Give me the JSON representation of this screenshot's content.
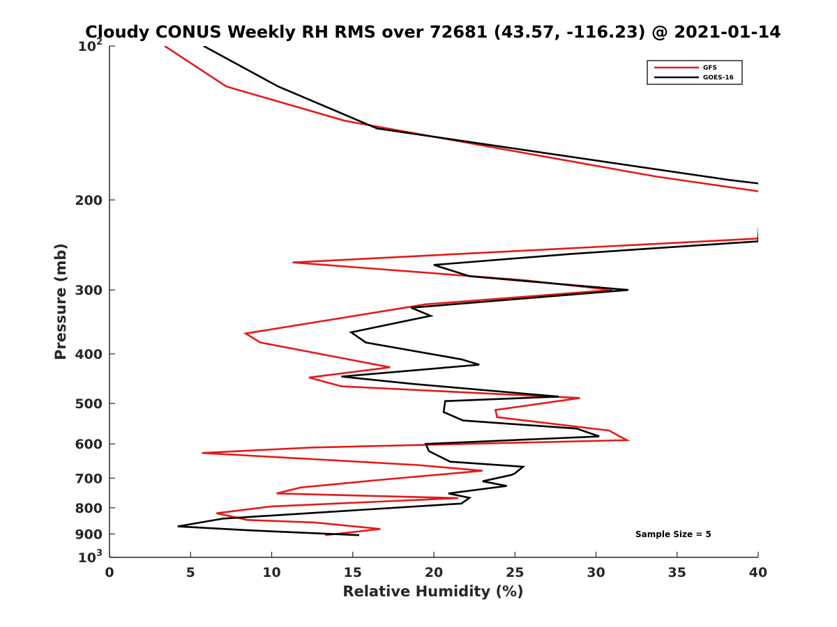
{
  "chart_data": {
    "type": "line",
    "title": "Cloudy CONUS Weekly RH RMS over 72681 (43.57, -116.23) @ 2021-01-14",
    "xlabel": "Relative Humidity (%)",
    "ylabel": "Pressure (mb)",
    "xlim": [
      0,
      40
    ],
    "ylim": [
      100,
      1000
    ],
    "yscale": "log",
    "y_reversed": true,
    "grid": false,
    "legend_position": "top-right",
    "x_ticks": [
      {
        "value": 0,
        "label": "0"
      },
      {
        "value": 5,
        "label": "5"
      },
      {
        "value": 10,
        "label": "10"
      },
      {
        "value": 15,
        "label": "15"
      },
      {
        "value": 20,
        "label": "20"
      },
      {
        "value": 25,
        "label": "25"
      },
      {
        "value": 30,
        "label": "30"
      },
      {
        "value": 35,
        "label": "35"
      },
      {
        "value": 40,
        "label": "40"
      }
    ],
    "y_ticks": [
      {
        "value": 100,
        "base": "10",
        "exp": "2"
      },
      {
        "value": 200,
        "label": "200"
      },
      {
        "value": 300,
        "label": "300"
      },
      {
        "value": 400,
        "label": "400"
      },
      {
        "value": 500,
        "label": "500"
      },
      {
        "value": 600,
        "label": "600"
      },
      {
        "value": 700,
        "label": "700"
      },
      {
        "value": 800,
        "label": "800"
      },
      {
        "value": 900,
        "label": "900"
      },
      {
        "value": 1000,
        "base": "10",
        "exp": "3"
      }
    ],
    "series": [
      {
        "name": "GFS",
        "color": "#e31a1a",
        "points": [
          [
            3.4,
            100
          ],
          [
            7.2,
            120
          ],
          [
            14.5,
            140
          ],
          [
            33.7,
            180
          ],
          [
            40.3,
            193
          ],
          [
            40.0,
            238
          ],
          [
            27.0,
            250
          ],
          [
            11.3,
            265
          ],
          [
            25.5,
            287
          ],
          [
            31.0,
            300
          ],
          [
            19.5,
            320
          ],
          [
            8.4,
            365
          ],
          [
            9.3,
            380
          ],
          [
            17.3,
            425
          ],
          [
            12.3,
            445
          ],
          [
            14.3,
            463
          ],
          [
            29.0,
            488
          ],
          [
            23.8,
            515
          ],
          [
            23.9,
            532
          ],
          [
            30.8,
            565
          ],
          [
            31.9,
            590
          ],
          [
            12.4,
            610
          ],
          [
            5.7,
            625
          ],
          [
            19.0,
            660
          ],
          [
            23.0,
            677
          ],
          [
            16.6,
            706
          ],
          [
            11.8,
            730
          ],
          [
            10.3,
            750
          ],
          [
            21.5,
            766
          ],
          [
            10.0,
            795
          ],
          [
            6.6,
            820
          ],
          [
            8.5,
            845
          ],
          [
            12.7,
            855
          ],
          [
            16.7,
            880
          ],
          [
            13.3,
            905
          ]
        ]
      },
      {
        "name": "GOES-16",
        "color": "#000000",
        "points": [
          [
            5.8,
            100
          ],
          [
            10.4,
            120
          ],
          [
            16.5,
            145
          ],
          [
            38.3,
            183
          ],
          [
            40.2,
            186
          ],
          [
            40.0,
            241
          ],
          [
            28.5,
            255
          ],
          [
            20.0,
            268
          ],
          [
            22.2,
            282
          ],
          [
            32.0,
            300
          ],
          [
            18.6,
            325
          ],
          [
            19.8,
            337
          ],
          [
            14.9,
            363
          ],
          [
            15.8,
            380
          ],
          [
            21.7,
            410
          ],
          [
            22.8,
            420
          ],
          [
            14.3,
            443
          ],
          [
            18.7,
            458
          ],
          [
            27.7,
            485
          ],
          [
            20.7,
            495
          ],
          [
            20.6,
            520
          ],
          [
            21.8,
            540
          ],
          [
            28.8,
            560
          ],
          [
            30.2,
            580
          ],
          [
            19.5,
            600
          ],
          [
            19.7,
            620
          ],
          [
            21.0,
            650
          ],
          [
            25.5,
            665
          ],
          [
            25.0,
            685
          ],
          [
            24.8,
            690
          ],
          [
            23.0,
            710
          ],
          [
            24.5,
            725
          ],
          [
            20.9,
            750
          ],
          [
            22.2,
            765
          ],
          [
            21.7,
            785
          ],
          [
            7.0,
            840
          ],
          [
            4.2,
            870
          ],
          [
            8.5,
            885
          ],
          [
            15.4,
            905
          ]
        ]
      }
    ],
    "legend": [
      {
        "label": "GFS",
        "color": "#e31a1a"
      },
      {
        "label": "GOES-16",
        "color": "#000000"
      }
    ],
    "annotations": [
      "Sample Size = 5"
    ]
  }
}
